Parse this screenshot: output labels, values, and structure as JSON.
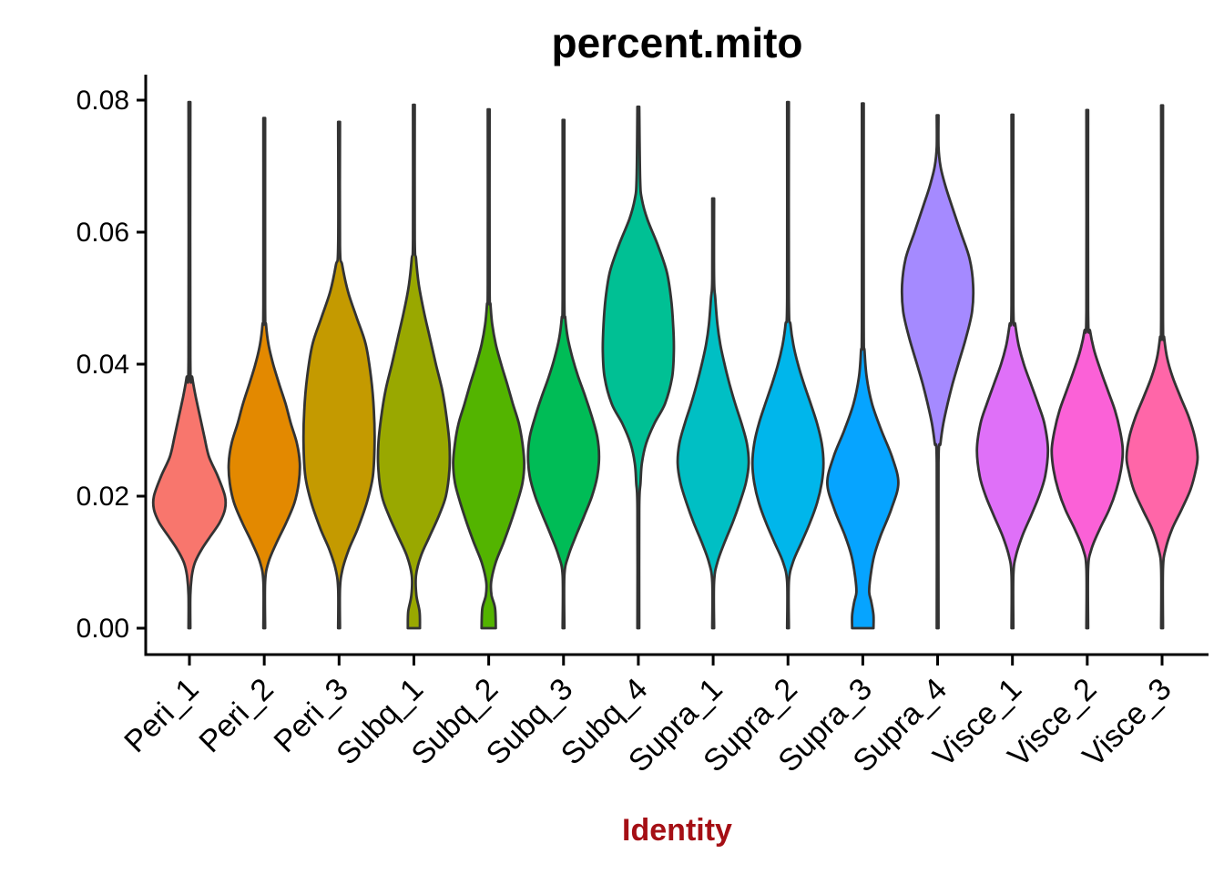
{
  "chart_data": {
    "type": "violin",
    "title": "percent.mito",
    "xlabel": "Identity",
    "ylabel": "",
    "ylim": [
      0,
      0.084
    ],
    "grid": false,
    "legend": "none",
    "y_tick_values": [
      0,
      0.02,
      0.04,
      0.06,
      0.08
    ],
    "y_ticks": [
      "0.00",
      "0.02",
      "0.04",
      "0.06",
      "0.08"
    ],
    "categories": [
      "Peri_1",
      "Peri_2",
      "Peri_3",
      "Subq_1",
      "Subq_2",
      "Subq_3",
      "Subq_4",
      "Supra_1",
      "Supra_2",
      "Supra_3",
      "Supra_4",
      "Visce_1",
      "Visce_2",
      "Visce_3"
    ],
    "violins": [
      {
        "label": "Peri_1",
        "color": "#F8766D",
        "max": 0.0797,
        "mode": 0.019,
        "profile": [
          [
            0.0,
            0.025
          ],
          [
            0.005,
            0.025
          ],
          [
            0.008,
            0.07
          ],
          [
            0.01,
            0.16
          ],
          [
            0.012,
            0.35
          ],
          [
            0.014,
            0.6
          ],
          [
            0.016,
            0.85
          ],
          [
            0.018,
            1.0
          ],
          [
            0.02,
            1.0
          ],
          [
            0.023,
            0.8
          ],
          [
            0.026,
            0.55
          ],
          [
            0.029,
            0.42
          ],
          [
            0.032,
            0.3
          ],
          [
            0.035,
            0.18
          ],
          [
            0.038,
            0.08
          ],
          [
            0.041,
            0.025
          ],
          [
            0.0797,
            0.025
          ]
        ]
      },
      {
        "label": "Peri_2",
        "color": "#E38900",
        "max": 0.0773,
        "mode": 0.025,
        "profile": [
          [
            0.0,
            0.025
          ],
          [
            0.007,
            0.025
          ],
          [
            0.01,
            0.12
          ],
          [
            0.013,
            0.35
          ],
          [
            0.016,
            0.62
          ],
          [
            0.019,
            0.85
          ],
          [
            0.022,
            0.97
          ],
          [
            0.025,
            1.0
          ],
          [
            0.028,
            0.92
          ],
          [
            0.031,
            0.75
          ],
          [
            0.034,
            0.6
          ],
          [
            0.037,
            0.42
          ],
          [
            0.04,
            0.25
          ],
          [
            0.043,
            0.12
          ],
          [
            0.046,
            0.05
          ],
          [
            0.049,
            0.025
          ],
          [
            0.0773,
            0.025
          ]
        ]
      },
      {
        "label": "Peri_3",
        "color": "#C49A00",
        "max": 0.0767,
        "mode": 0.028,
        "profile": [
          [
            0.0,
            0.025
          ],
          [
            0.006,
            0.025
          ],
          [
            0.009,
            0.1
          ],
          [
            0.012,
            0.28
          ],
          [
            0.015,
            0.52
          ],
          [
            0.019,
            0.78
          ],
          [
            0.023,
            0.95
          ],
          [
            0.028,
            1.0
          ],
          [
            0.033,
            0.98
          ],
          [
            0.038,
            0.9
          ],
          [
            0.043,
            0.75
          ],
          [
            0.047,
            0.5
          ],
          [
            0.051,
            0.25
          ],
          [
            0.055,
            0.09
          ],
          [
            0.058,
            0.025
          ],
          [
            0.0767,
            0.025
          ]
        ]
      },
      {
        "label": "Subq_1",
        "color": "#99A800",
        "max": 0.0793,
        "mode": 0.026,
        "profile": [
          [
            0.0,
            0.17
          ],
          [
            0.0025,
            0.16
          ],
          [
            0.005,
            0.07
          ],
          [
            0.008,
            0.06
          ],
          [
            0.011,
            0.2
          ],
          [
            0.014,
            0.45
          ],
          [
            0.017,
            0.7
          ],
          [
            0.02,
            0.9
          ],
          [
            0.024,
            1.0
          ],
          [
            0.028,
            1.0
          ],
          [
            0.032,
            0.92
          ],
          [
            0.036,
            0.8
          ],
          [
            0.04,
            0.62
          ],
          [
            0.044,
            0.45
          ],
          [
            0.048,
            0.28
          ],
          [
            0.052,
            0.14
          ],
          [
            0.056,
            0.06
          ],
          [
            0.059,
            0.025
          ],
          [
            0.0793,
            0.025
          ]
        ]
      },
      {
        "label": "Subq_2",
        "color": "#53B400",
        "max": 0.0786,
        "mode": 0.025,
        "profile": [
          [
            0.0,
            0.2
          ],
          [
            0.003,
            0.18
          ],
          [
            0.005,
            0.08
          ],
          [
            0.007,
            0.07
          ],
          [
            0.01,
            0.2
          ],
          [
            0.013,
            0.42
          ],
          [
            0.016,
            0.62
          ],
          [
            0.019,
            0.8
          ],
          [
            0.022,
            0.95
          ],
          [
            0.025,
            1.0
          ],
          [
            0.028,
            0.95
          ],
          [
            0.031,
            0.85
          ],
          [
            0.034,
            0.68
          ],
          [
            0.037,
            0.52
          ],
          [
            0.04,
            0.35
          ],
          [
            0.043,
            0.2
          ],
          [
            0.046,
            0.1
          ],
          [
            0.049,
            0.05
          ],
          [
            0.052,
            0.025
          ],
          [
            0.0786,
            0.025
          ]
        ]
      },
      {
        "label": "Subq_3",
        "color": "#00BC56",
        "max": 0.077,
        "mode": 0.026,
        "profile": [
          [
            0.0,
            0.025
          ],
          [
            0.008,
            0.025
          ],
          [
            0.011,
            0.14
          ],
          [
            0.014,
            0.35
          ],
          [
            0.017,
            0.58
          ],
          [
            0.02,
            0.8
          ],
          [
            0.023,
            0.95
          ],
          [
            0.026,
            1.0
          ],
          [
            0.029,
            0.95
          ],
          [
            0.032,
            0.8
          ],
          [
            0.035,
            0.62
          ],
          [
            0.038,
            0.42
          ],
          [
            0.041,
            0.25
          ],
          [
            0.044,
            0.12
          ],
          [
            0.047,
            0.05
          ],
          [
            0.05,
            0.025
          ],
          [
            0.077,
            0.025
          ]
        ]
      },
      {
        "label": "Subq_4",
        "color": "#00C094",
        "max": 0.079,
        "mode": 0.042,
        "profile": [
          [
            0.0,
            0.025
          ],
          [
            0.018,
            0.025
          ],
          [
            0.022,
            0.06
          ],
          [
            0.025,
            0.1
          ],
          [
            0.028,
            0.22
          ],
          [
            0.031,
            0.45
          ],
          [
            0.034,
            0.75
          ],
          [
            0.038,
            0.95
          ],
          [
            0.042,
            1.0
          ],
          [
            0.046,
            0.98
          ],
          [
            0.05,
            0.92
          ],
          [
            0.054,
            0.8
          ],
          [
            0.058,
            0.55
          ],
          [
            0.062,
            0.25
          ],
          [
            0.065,
            0.1
          ],
          [
            0.068,
            0.05
          ],
          [
            0.079,
            0.025
          ]
        ]
      },
      {
        "label": "Supra_1",
        "color": "#00BFC4",
        "max": 0.0651,
        "mode": 0.025,
        "profile": [
          [
            0.0,
            0.025
          ],
          [
            0.007,
            0.025
          ],
          [
            0.01,
            0.12
          ],
          [
            0.013,
            0.32
          ],
          [
            0.016,
            0.55
          ],
          [
            0.019,
            0.75
          ],
          [
            0.022,
            0.92
          ],
          [
            0.025,
            1.0
          ],
          [
            0.028,
            0.95
          ],
          [
            0.031,
            0.8
          ],
          [
            0.034,
            0.62
          ],
          [
            0.037,
            0.46
          ],
          [
            0.04,
            0.32
          ],
          [
            0.043,
            0.2
          ],
          [
            0.046,
            0.12
          ],
          [
            0.05,
            0.06
          ],
          [
            0.053,
            0.025
          ],
          [
            0.0651,
            0.025
          ]
        ]
      },
      {
        "label": "Supra_2",
        "color": "#00B6EB",
        "max": 0.0797,
        "mode": 0.025,
        "profile": [
          [
            0.0,
            0.025
          ],
          [
            0.007,
            0.025
          ],
          [
            0.01,
            0.14
          ],
          [
            0.013,
            0.38
          ],
          [
            0.016,
            0.62
          ],
          [
            0.019,
            0.82
          ],
          [
            0.022,
            0.95
          ],
          [
            0.025,
            1.0
          ],
          [
            0.028,
            0.95
          ],
          [
            0.031,
            0.82
          ],
          [
            0.034,
            0.64
          ],
          [
            0.037,
            0.45
          ],
          [
            0.04,
            0.28
          ],
          [
            0.043,
            0.15
          ],
          [
            0.046,
            0.07
          ],
          [
            0.05,
            0.025
          ],
          [
            0.0797,
            0.025
          ]
        ]
      },
      {
        "label": "Supra_3",
        "color": "#06A4FF",
        "max": 0.0795,
        "mode": 0.022,
        "profile": [
          [
            0.0,
            0.3
          ],
          [
            0.002,
            0.3
          ],
          [
            0.004,
            0.24
          ],
          [
            0.0055,
            0.18
          ],
          [
            0.008,
            0.22
          ],
          [
            0.011,
            0.32
          ],
          [
            0.014,
            0.5
          ],
          [
            0.018,
            0.8
          ],
          [
            0.022,
            1.0
          ],
          [
            0.026,
            0.82
          ],
          [
            0.03,
            0.52
          ],
          [
            0.034,
            0.26
          ],
          [
            0.038,
            0.11
          ],
          [
            0.042,
            0.05
          ],
          [
            0.046,
            0.025
          ],
          [
            0.0795,
            0.025
          ]
        ]
      },
      {
        "label": "Supra_4",
        "color": "#A58AFF",
        "max": 0.0777,
        "mode": 0.05,
        "profile": [
          [
            0.0,
            0.025
          ],
          [
            0.025,
            0.025
          ],
          [
            0.028,
            0.08
          ],
          [
            0.031,
            0.16
          ],
          [
            0.034,
            0.28
          ],
          [
            0.037,
            0.42
          ],
          [
            0.04,
            0.58
          ],
          [
            0.044,
            0.8
          ],
          [
            0.048,
            0.97
          ],
          [
            0.052,
            1.0
          ],
          [
            0.056,
            0.9
          ],
          [
            0.06,
            0.65
          ],
          [
            0.064,
            0.4
          ],
          [
            0.067,
            0.22
          ],
          [
            0.07,
            0.08
          ],
          [
            0.073,
            0.025
          ],
          [
            0.0777,
            0.025
          ]
        ]
      },
      {
        "label": "Visce_1",
        "color": "#DF70F8",
        "max": 0.0778,
        "mode": 0.027,
        "profile": [
          [
            0.0,
            0.025
          ],
          [
            0.008,
            0.025
          ],
          [
            0.011,
            0.1
          ],
          [
            0.014,
            0.28
          ],
          [
            0.017,
            0.52
          ],
          [
            0.02,
            0.75
          ],
          [
            0.023,
            0.92
          ],
          [
            0.027,
            1.0
          ],
          [
            0.031,
            0.9
          ],
          [
            0.034,
            0.72
          ],
          [
            0.037,
            0.52
          ],
          [
            0.04,
            0.32
          ],
          [
            0.043,
            0.17
          ],
          [
            0.046,
            0.08
          ],
          [
            0.049,
            0.025
          ],
          [
            0.0778,
            0.025
          ]
        ]
      },
      {
        "label": "Visce_2",
        "color": "#FB61D7",
        "max": 0.0785,
        "mode": 0.027,
        "profile": [
          [
            0.0,
            0.025
          ],
          [
            0.009,
            0.025
          ],
          [
            0.012,
            0.12
          ],
          [
            0.015,
            0.35
          ],
          [
            0.018,
            0.62
          ],
          [
            0.021,
            0.82
          ],
          [
            0.024,
            0.95
          ],
          [
            0.027,
            1.0
          ],
          [
            0.03,
            0.92
          ],
          [
            0.033,
            0.78
          ],
          [
            0.036,
            0.58
          ],
          [
            0.039,
            0.38
          ],
          [
            0.042,
            0.2
          ],
          [
            0.045,
            0.08
          ],
          [
            0.048,
            0.025
          ],
          [
            0.0785,
            0.025
          ]
        ]
      },
      {
        "label": "Visce_3",
        "color": "#FF66A8",
        "max": 0.0792,
        "mode": 0.026,
        "profile": [
          [
            0.0,
            0.025
          ],
          [
            0.009,
            0.025
          ],
          [
            0.012,
            0.1
          ],
          [
            0.015,
            0.28
          ],
          [
            0.018,
            0.55
          ],
          [
            0.021,
            0.8
          ],
          [
            0.024,
            0.95
          ],
          [
            0.026,
            1.0
          ],
          [
            0.029,
            0.92
          ],
          [
            0.032,
            0.75
          ],
          [
            0.035,
            0.52
          ],
          [
            0.038,
            0.3
          ],
          [
            0.041,
            0.14
          ],
          [
            0.044,
            0.06
          ],
          [
            0.047,
            0.025
          ],
          [
            0.0792,
            0.025
          ]
        ]
      }
    ]
  },
  "styles": {
    "background": "#FFFFFF",
    "violin_outline": "#333333",
    "axis_color": "#000000",
    "title_color": "#000000",
    "xlabel_color": "#A50F15",
    "tick_label_color": "#000000"
  }
}
